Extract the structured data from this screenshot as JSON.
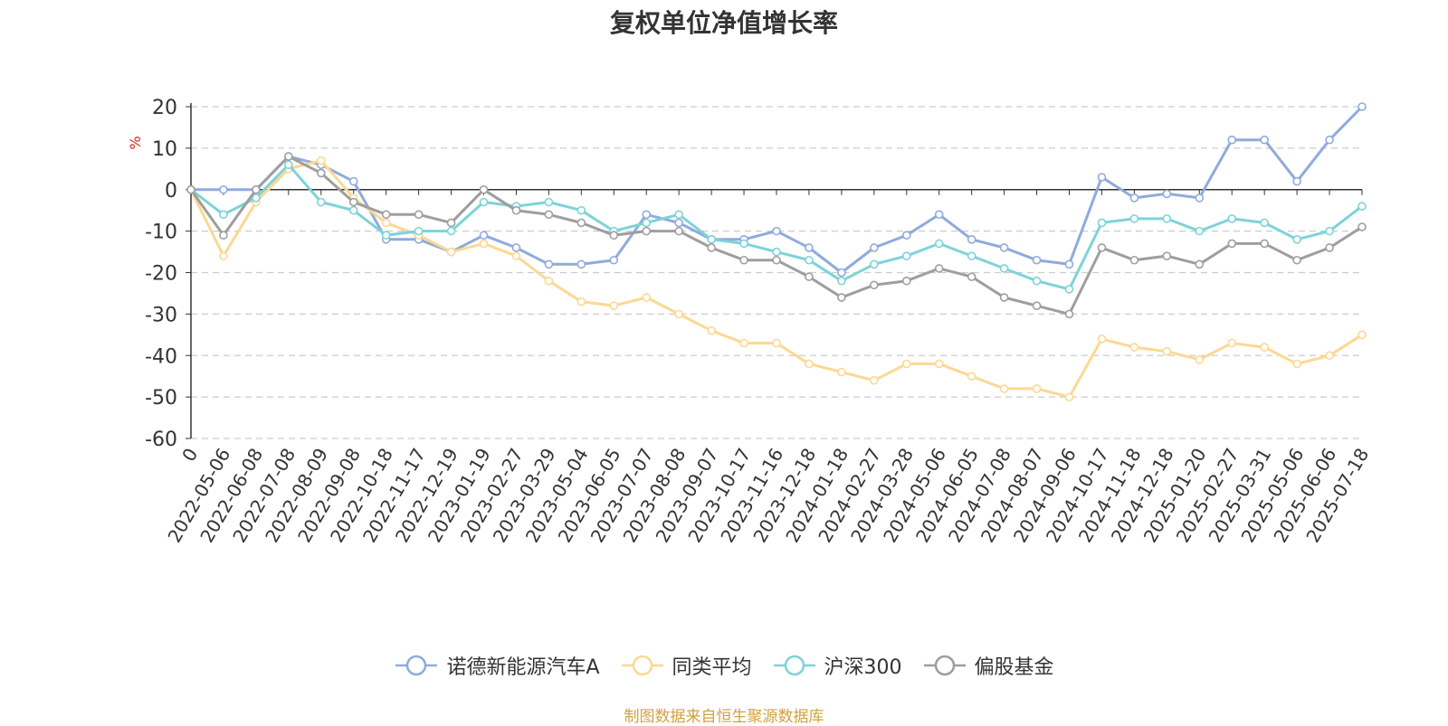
{
  "chart_data": {
    "type": "line",
    "title": "复权单位净值增长率",
    "ylabel": "%",
    "ylim": [
      -60,
      20
    ],
    "yticks": [
      20,
      10,
      0,
      -10,
      -20,
      -30,
      -40,
      -50,
      -60
    ],
    "grid": true,
    "legend_position": "bottom",
    "categories": [
      "0",
      "2022-05-06",
      "2022-06-08",
      "2022-07-08",
      "2022-08-09",
      "2022-09-08",
      "2022-10-18",
      "2022-11-17",
      "2022-12-19",
      "2023-01-19",
      "2023-02-27",
      "2023-03-29",
      "2023-05-04",
      "2023-06-05",
      "2023-07-07",
      "2023-08-08",
      "2023-09-07",
      "2023-10-17",
      "2023-11-16",
      "2023-12-18",
      "2024-01-18",
      "2024-02-27",
      "2024-03-28",
      "2024-05-06",
      "2024-06-05",
      "2024-07-08",
      "2024-08-07",
      "2024-09-06",
      "2024-10-17",
      "2024-11-18",
      "2024-12-18",
      "2025-01-20",
      "2025-02-27",
      "2025-03-31",
      "2025-05-06",
      "2025-06-06",
      "2025-07-18"
    ],
    "series": [
      {
        "name": "诺德新能源汽车A",
        "color": "#8fabdc",
        "values": [
          0,
          0,
          0,
          8,
          6,
          2,
          -12,
          -12,
          -15,
          -11,
          -14,
          -18,
          -18,
          -17,
          -6,
          -8,
          -12,
          -12,
          -10,
          -14,
          -20,
          -14,
          -11,
          -6,
          -12,
          -14,
          -17,
          -18,
          3,
          -2,
          -1,
          -2,
          12,
          12,
          2,
          12,
          20
        ]
      },
      {
        "name": "同类平均",
        "color": "#fcd892",
        "values": [
          0,
          -16,
          -3,
          5,
          7,
          -2,
          -8,
          -11,
          -15,
          -13,
          -16,
          -22,
          -27,
          -28,
          -26,
          -30,
          -34,
          -37,
          -37,
          -42,
          -44,
          -46,
          -42,
          -42,
          -45,
          -48,
          -48,
          -50,
          -36,
          -38,
          -39,
          -41,
          -37,
          -38,
          -42,
          -40,
          -35
        ]
      },
      {
        "name": "沪深300",
        "color": "#7dd3d8",
        "values": [
          0,
          -6,
          -2,
          6,
          -3,
          -5,
          -11,
          -10,
          -10,
          -3,
          -4,
          -3,
          -5,
          -10,
          -8,
          -6,
          -12,
          -13,
          -15,
          -17,
          -22,
          -18,
          -16,
          -13,
          -16,
          -19,
          -22,
          -24,
          -8,
          -7,
          -7,
          -10,
          -7,
          -8,
          -12,
          -10,
          -4
        ]
      },
      {
        "name": "偏股基金",
        "color": "#9e9e9e",
        "values": [
          0,
          -11,
          0,
          8,
          4,
          -3,
          -6,
          -6,
          -8,
          0,
          -5,
          -6,
          -8,
          -11,
          -10,
          -10,
          -14,
          -17,
          -17,
          -21,
          -26,
          -23,
          -22,
          -19,
          -21,
          -26,
          -28,
          -30,
          -14,
          -17,
          -16,
          -18,
          -13,
          -13,
          -17,
          -14,
          -9
        ]
      }
    ]
  },
  "footer": {
    "text": "制图数据来自恒生聚源数据库",
    "color": "#d1a23f"
  }
}
